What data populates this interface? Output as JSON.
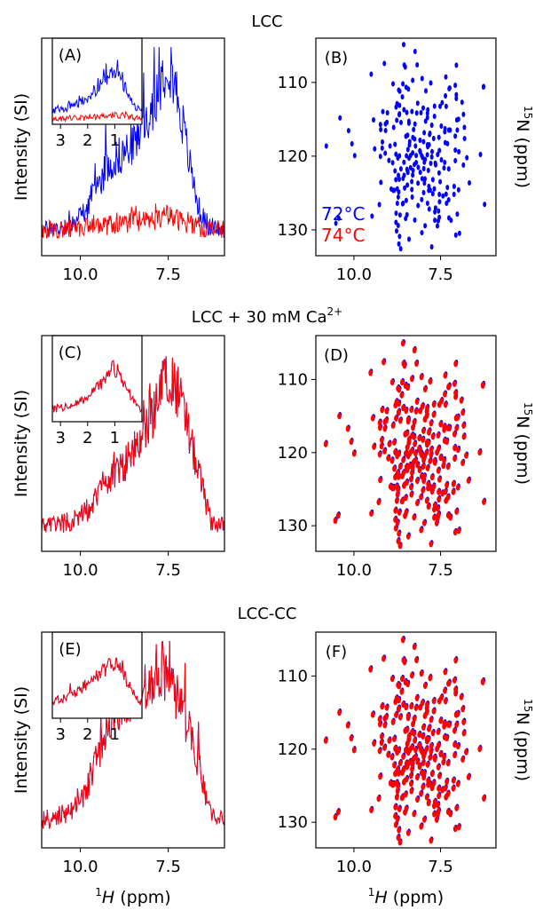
{
  "chart_data": [
    {
      "row_title": "LCC",
      "rows": 0,
      "spectrum": {
        "type": "line",
        "label": "(A)",
        "xlabel": "",
        "ylabel": "Intensity (SI)",
        "xlim": [
          11.1,
          5.9
        ],
        "xticks": [
          "10.0",
          "7.5"
        ],
        "xtick_values": [
          10.0,
          7.5
        ],
        "series": [
          {
            "color": "#0000ff",
            "x": [
              11.0,
              10.6,
              10.2,
              9.9,
              9.6,
              9.3,
              9.0,
              8.7,
              8.4,
              8.1,
              7.8,
              7.5,
              7.2,
              6.9,
              6.6,
              6.3,
              6.0
            ],
            "values": [
              0.05,
              0.06,
              0.09,
              0.14,
              0.24,
              0.36,
              0.42,
              0.46,
              0.52,
              0.62,
              0.78,
              0.95,
              0.72,
              0.4,
              0.14,
              0.06,
              0.05
            ]
          },
          {
            "color": "#ff0000",
            "x": [
              11.0,
              10.0,
              9.0,
              8.0,
              7.5,
              7.0,
              6.5,
              6.0
            ],
            "values": [
              0.05,
              0.06,
              0.08,
              0.1,
              0.12,
              0.09,
              0.06,
              0.05
            ]
          }
        ],
        "inset": {
          "xlim": [
            3.3,
            0.0
          ],
          "xticks": [
            "3",
            "2",
            "1"
          ],
          "xtick_values": [
            3,
            2,
            1
          ],
          "series": [
            {
              "color": "#0000ff",
              "x": [
                3.2,
                2.8,
                2.4,
                2.0,
                1.6,
                1.3,
                1.1,
                0.9,
                0.6,
                0.3,
                0.1
              ],
              "values": [
                0.15,
                0.18,
                0.24,
                0.32,
                0.46,
                0.58,
                0.7,
                0.66,
                0.45,
                0.26,
                0.15
              ]
            },
            {
              "color": "#ff0000",
              "x": [
                3.2,
                2.0,
                1.0,
                0.5,
                0.1
              ],
              "values": [
                0.05,
                0.06,
                0.1,
                0.08,
                0.05
              ]
            }
          ]
        }
      },
      "hsqc": {
        "type": "scatter",
        "label": "(B)",
        "xlabel": "",
        "ylabel": "15N (ppm)",
        "xlim": [
          11.1,
          5.9
        ],
        "ylim": [
          133.5,
          104
        ],
        "xticks": [
          "10.0",
          "7.5"
        ],
        "xtick_values": [
          10.0,
          7.5
        ],
        "yticks": [
          "110",
          "120",
          "130"
        ],
        "ytick_values": [
          110,
          120,
          130
        ],
        "legend": [
          {
            "text": "72°C",
            "color": "#0000ff"
          },
          {
            "text": "74°C",
            "color": "#ff0000"
          }
        ],
        "series": [
          {
            "color": "#0000ff"
          }
        ]
      }
    },
    {
      "row_title": "LCC + 30 mM Ca",
      "row_title_sup": "2+",
      "spectrum": {
        "type": "line",
        "label": "(C)",
        "ylabel": "Intensity (SI)",
        "xlim": [
          11.1,
          5.9
        ],
        "xticks": [
          "10.0",
          "7.5"
        ],
        "xtick_values": [
          10.0,
          7.5
        ],
        "series": [
          {
            "color": "#0000ff",
            "x": [
              11.0,
              10.6,
              10.2,
              9.9,
              9.6,
              9.3,
              9.0,
              8.7,
              8.4,
              8.1,
              7.8,
              7.5,
              7.2,
              6.9,
              6.6,
              6.3,
              6.0
            ],
            "values": [
              0.05,
              0.06,
              0.08,
              0.11,
              0.18,
              0.26,
              0.32,
              0.38,
              0.46,
              0.56,
              0.7,
              0.86,
              0.74,
              0.52,
              0.3,
              0.08,
              0.05
            ]
          },
          {
            "color": "#ff0000",
            "x": [
              11.0,
              10.6,
              10.2,
              9.9,
              9.6,
              9.3,
              9.0,
              8.7,
              8.4,
              8.1,
              7.8,
              7.5,
              7.2,
              6.9,
              6.6,
              6.3,
              6.0
            ],
            "values": [
              0.05,
              0.06,
              0.08,
              0.11,
              0.18,
              0.26,
              0.32,
              0.38,
              0.46,
              0.56,
              0.7,
              0.86,
              0.74,
              0.52,
              0.3,
              0.08,
              0.05
            ]
          }
        ],
        "inset": {
          "xlim": [
            3.3,
            0.0
          ],
          "xticks": [
            "3",
            "2",
            "1"
          ],
          "xtick_values": [
            3,
            2,
            1
          ],
          "series": [
            {
              "color": "#0000ff",
              "x": [
                3.2,
                2.8,
                2.4,
                2.0,
                1.6,
                1.3,
                1.1,
                0.9,
                0.6,
                0.3,
                0.1
              ],
              "values": [
                0.15,
                0.17,
                0.22,
                0.3,
                0.44,
                0.56,
                0.7,
                0.64,
                0.44,
                0.24,
                0.15
              ]
            },
            {
              "color": "#ff0000",
              "x": [
                3.2,
                2.8,
                2.4,
                2.0,
                1.6,
                1.3,
                1.1,
                0.9,
                0.6,
                0.3,
                0.1
              ],
              "values": [
                0.15,
                0.17,
                0.22,
                0.3,
                0.44,
                0.56,
                0.7,
                0.64,
                0.44,
                0.24,
                0.15
              ]
            }
          ]
        }
      },
      "hsqc": {
        "type": "scatter",
        "label": "(D)",
        "ylabel": "15N (ppm)",
        "xlim": [
          11.1,
          5.9
        ],
        "ylim": [
          133.5,
          104
        ],
        "xticks": [
          "10.0",
          "7.5"
        ],
        "xtick_values": [
          10.0,
          7.5
        ],
        "yticks": [
          "110",
          "120",
          "130"
        ],
        "ytick_values": [
          110,
          120,
          130
        ],
        "series": [
          {
            "color": "#0000ff"
          },
          {
            "color": "#ff0000"
          }
        ]
      }
    },
    {
      "row_title": "LCC-CC",
      "spectrum": {
        "type": "line",
        "label": "(E)",
        "xlabel": "1H (ppm)",
        "ylabel": "Intensity (SI)",
        "xlim": [
          11.1,
          5.9
        ],
        "xticks": [
          "10.0",
          "7.5"
        ],
        "xtick_values": [
          10.0,
          7.5
        ],
        "series": [
          {
            "color": "#0000ff",
            "x": [
              11.0,
              10.6,
              10.2,
              9.9,
              9.6,
              9.3,
              9.0,
              8.7,
              8.4,
              8.1,
              7.8,
              7.5,
              7.2,
              6.9,
              6.6,
              6.3,
              6.0
            ],
            "values": [
              0.06,
              0.08,
              0.12,
              0.2,
              0.34,
              0.5,
              0.62,
              0.7,
              0.74,
              0.8,
              0.86,
              0.8,
              0.7,
              0.52,
              0.34,
              0.1,
              0.06
            ]
          },
          {
            "color": "#ff0000",
            "x": [
              11.0,
              10.6,
              10.2,
              9.9,
              9.6,
              9.3,
              9.0,
              8.7,
              8.4,
              8.1,
              7.8,
              7.5,
              7.2,
              6.9,
              6.6,
              6.3,
              6.0
            ],
            "values": [
              0.06,
              0.08,
              0.12,
              0.2,
              0.34,
              0.5,
              0.62,
              0.7,
              0.74,
              0.8,
              0.86,
              0.8,
              0.7,
              0.52,
              0.34,
              0.1,
              0.06
            ]
          }
        ],
        "inset": {
          "xlim": [
            3.3,
            0.0
          ],
          "xticks": [
            "3",
            "2",
            "1"
          ],
          "xtick_values": [
            3,
            2,
            1
          ],
          "series": [
            {
              "color": "#0000ff",
              "x": [
                3.2,
                2.8,
                2.4,
                2.0,
                1.6,
                1.3,
                1.1,
                0.9,
                0.6,
                0.3,
                0.1
              ],
              "values": [
                0.2,
                0.26,
                0.34,
                0.44,
                0.55,
                0.64,
                0.72,
                0.68,
                0.5,
                0.3,
                0.18
              ]
            },
            {
              "color": "#ff0000",
              "x": [
                3.2,
                2.8,
                2.4,
                2.0,
                1.6,
                1.3,
                1.1,
                0.9,
                0.6,
                0.3,
                0.1
              ],
              "values": [
                0.2,
                0.26,
                0.34,
                0.44,
                0.55,
                0.64,
                0.72,
                0.68,
                0.5,
                0.3,
                0.18
              ]
            }
          ]
        }
      },
      "hsqc": {
        "type": "scatter",
        "label": "(F)",
        "xlabel": "1H (ppm)",
        "ylabel": "15N (ppm)",
        "xlim": [
          11.1,
          5.9
        ],
        "ylim": [
          133.5,
          104
        ],
        "xticks": [
          "10.0",
          "7.5"
        ],
        "xtick_values": [
          10.0,
          7.5
        ],
        "yticks": [
          "110",
          "120",
          "130"
        ],
        "ytick_values": [
          110,
          120,
          130
        ],
        "series": [
          {
            "color": "#0000ff"
          },
          {
            "color": "#ff0000"
          }
        ]
      }
    }
  ]
}
